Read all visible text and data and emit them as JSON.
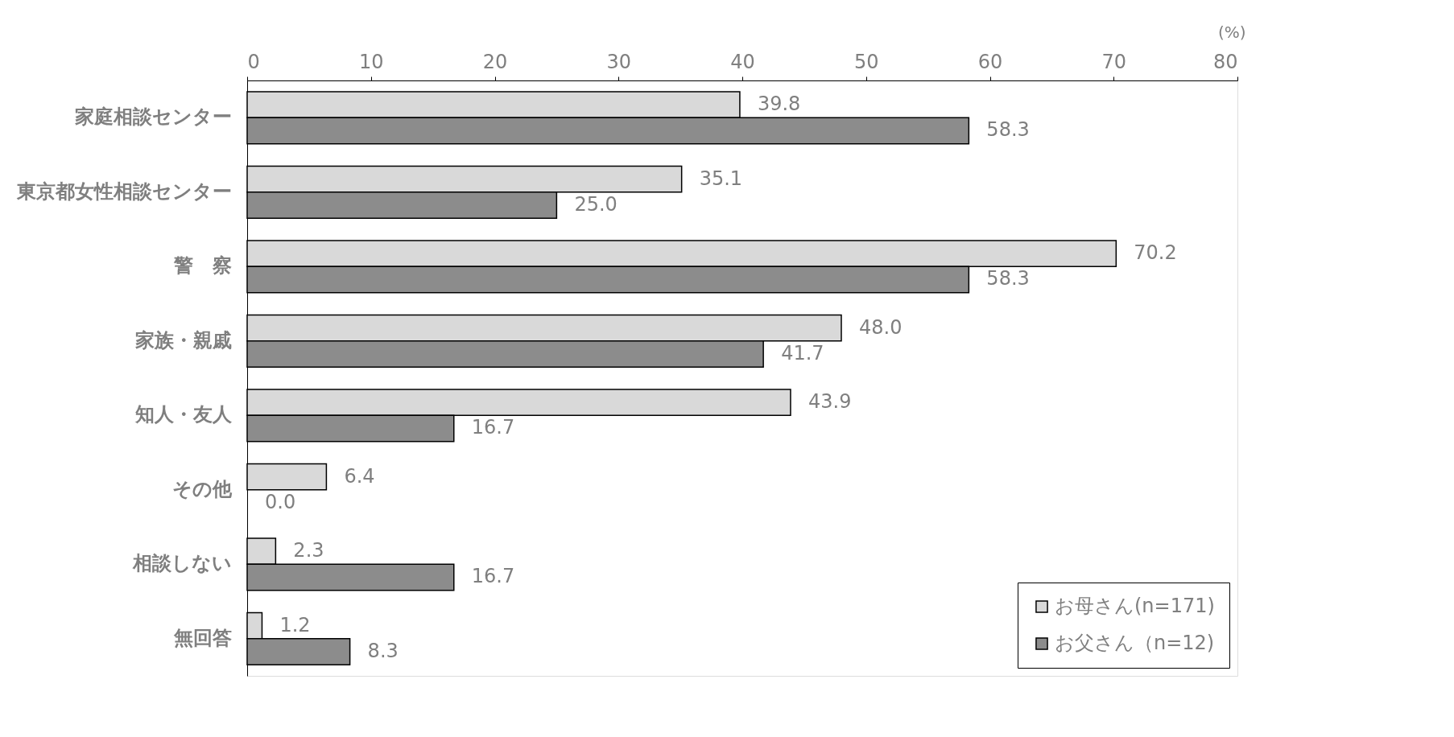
{
  "chart_data": {
    "type": "bar",
    "orientation": "horizontal",
    "xlabel": "(%)",
    "categories": [
      "家庭相談センター",
      "東京都女性相談センター",
      "警　察",
      "家族・親戚",
      "知人・友人",
      "その他",
      "相談しない",
      "無回答"
    ],
    "series": [
      {
        "name": "お母さん(n=171)",
        "color": "#d9d9d9",
        "values": [
          39.8,
          35.1,
          70.2,
          48.0,
          43.9,
          6.4,
          2.3,
          1.2
        ],
        "value_labels": [
          "39.8",
          "35.1",
          "70.2",
          "48.0",
          "43.9",
          "6.4",
          "2.3",
          "1.2"
        ]
      },
      {
        "name": "お父さん（n=12)",
        "color": "#8c8c8c",
        "values": [
          58.3,
          25.0,
          58.3,
          41.7,
          16.7,
          0.0,
          16.7,
          8.3
        ],
        "value_labels": [
          "58.3",
          "25.0",
          "58.3",
          "41.7",
          "16.7",
          "0.0",
          "16.7",
          "8.3"
        ]
      }
    ],
    "xlim": [
      0,
      80
    ],
    "xticks": [
      0,
      10,
      20,
      30,
      40,
      50,
      60,
      70,
      80
    ],
    "grid": false,
    "legend": "bottom right"
  }
}
